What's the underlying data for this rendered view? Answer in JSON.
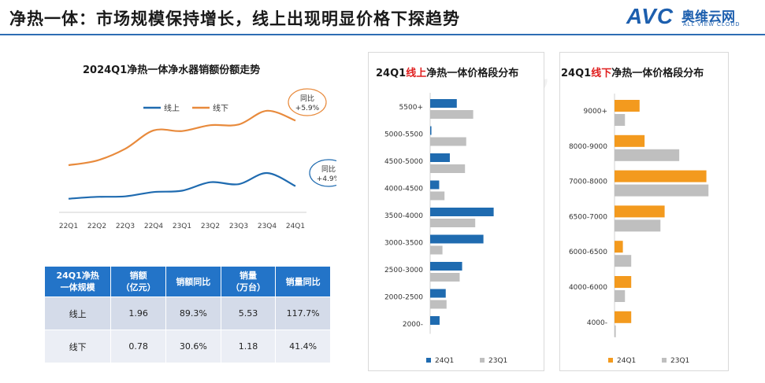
{
  "page": {
    "title": "净热一体：市场规模保持增长，线上出现明显价格下探趋势"
  },
  "logo": {
    "mark": "AVC",
    "name_cn": "奥维云网",
    "name_en": "ALL VIEW CLOUD"
  },
  "chart_data": [
    {
      "type": "line",
      "title": "2024Q1净热一体净水器销额份额走势",
      "x": [
        "22Q1",
        "22Q2",
        "22Q3",
        "22Q4",
        "23Q1",
        "23Q2",
        "23Q3",
        "23Q4",
        "24Q1"
      ],
      "series": [
        {
          "name": "线上",
          "color": "#1f6bb0",
          "values": [
            1.04,
            1.18,
            1.22,
            1.55,
            1.65,
            2.3,
            2.15,
            3.0,
            2.0
          ]
        },
        {
          "name": "线下",
          "color": "#e88a3c",
          "values": [
            3.6,
            3.95,
            4.85,
            6.25,
            6.2,
            6.65,
            6.7,
            7.75,
            7.0
          ]
        }
      ],
      "ylim": [
        0,
        9
      ],
      "legend": "top-left",
      "annotations": [
        {
          "series": "线下",
          "label": "同比",
          "value": "+5.9%"
        },
        {
          "series": "线上",
          "label": "同比",
          "value": "+4.9%"
        }
      ]
    },
    {
      "type": "bar",
      "orientation": "horizontal",
      "title_prefix": "24Q1",
      "title_highlight": "线上",
      "title_suffix": "净热一体价格段分布",
      "categories": [
        "5500+",
        "5000-5500",
        "4500-5000",
        "4000-4500",
        "3500-4000",
        "3000-3500",
        "2500-3000",
        "2000-2500",
        "2000-"
      ],
      "series": [
        {
          "name": "24Q1",
          "color": "#1f6bb0",
          "values": [
            6.5,
            0.3,
            4.8,
            2.2,
            15.5,
            13.0,
            7.8,
            3.8,
            2.3
          ]
        },
        {
          "name": "23Q1",
          "color": "#bfbfbf",
          "values": [
            10.5,
            8.8,
            8.5,
            3.5,
            11.0,
            3.0,
            7.2,
            4.0,
            0
          ]
        }
      ],
      "legend": "bottom"
    },
    {
      "type": "bar",
      "orientation": "horizontal",
      "title_prefix": "24Q1",
      "title_highlight": "线下",
      "title_suffix": "净热一体价格段分布",
      "categories": [
        "9000+",
        "8000-9000",
        "7000-8000",
        "6500-7000",
        "6000-6500",
        "4000-6000",
        "4000-"
      ],
      "series": [
        {
          "name": "24Q1",
          "color": "#f39a1e",
          "values": [
            6.0,
            7.2,
            22.0,
            12.0,
            2.0,
            4.0,
            4.0
          ]
        },
        {
          "name": "23Q1",
          "color": "#bfbfbf",
          "values": [
            2.5,
            15.5,
            22.5,
            11.0,
            4.0,
            2.5,
            0.3
          ]
        }
      ],
      "legend": "bottom"
    }
  ],
  "table": {
    "headers": [
      "24Q1净热\n一体规模",
      "销额\n（亿元）",
      "销额同比",
      "销量\n（万台）",
      "销量同比"
    ],
    "rows": [
      [
        "线上",
        "1.96",
        "89.3%",
        "5.53",
        "117.7%"
      ],
      [
        "线下",
        "0.78",
        "30.6%",
        "1.18",
        "41.4%"
      ]
    ]
  }
}
